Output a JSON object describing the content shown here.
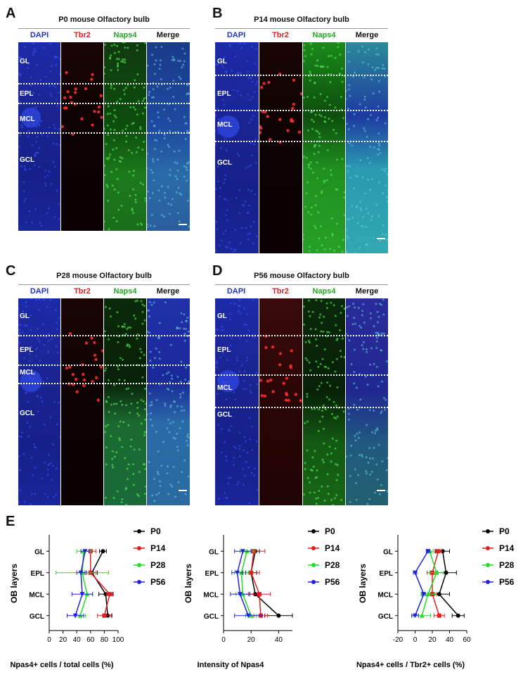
{
  "panels": [
    {
      "letter": "A",
      "title": "P0 mouse Olfactory bulb",
      "columns": [
        "DAPI",
        "Tbr2",
        "Naps4",
        "Merge"
      ],
      "layers": [
        "GL",
        "EPL",
        "MCL",
        "GCL"
      ]
    },
    {
      "letter": "B",
      "title": "P14 mouse Olfactory bulb",
      "columns": [
        "DAPI",
        "Tbr2",
        "Naps4",
        "Merge"
      ],
      "layers": [
        "GL",
        "EPL",
        "MCL",
        "GCL"
      ]
    },
    {
      "letter": "C",
      "title": "P28 mouse Olfactory bulb",
      "columns": [
        "DAPI",
        "Tbr2",
        "Naps4",
        "Merge"
      ],
      "layers": [
        "GL",
        "EPL",
        "MCL",
        "GCL"
      ]
    },
    {
      "letter": "D",
      "title": "P56 mouse Olfactory bulb",
      "columns": [
        "DAPI",
        "Tbr2",
        "Naps4",
        "Merge"
      ],
      "layers": [
        "GL",
        "EPL",
        "MCL",
        "GCL"
      ]
    }
  ],
  "panel_e_letter": "E",
  "colors": {
    "dapi": "#2233cc",
    "tbr2": "#dd2222",
    "naps4": "#22aa22",
    "P0": "#000000",
    "P14": "#e02020",
    "P28": "#22dd22",
    "P56": "#2222dd"
  },
  "chart_data": [
    {
      "type": "line",
      "orientation": "horizontal",
      "categories": [
        "GL",
        "EPL",
        "MCL",
        "GCL"
      ],
      "ylabel": "OB layers",
      "xlabel": "Npas4+ cells / total cells (%)",
      "xlim": [
        0,
        100
      ],
      "xticks": [
        0,
        20,
        40,
        60,
        80,
        100
      ],
      "series": [
        {
          "name": "P0",
          "values": [
            78,
            62,
            82,
            85
          ],
          "errors": [
            5,
            8,
            10,
            6
          ]
        },
        {
          "name": "P14",
          "values": [
            60,
            60,
            88,
            80
          ],
          "errors": [
            8,
            8,
            5,
            10
          ]
        },
        {
          "name": "P28",
          "values": [
            50,
            48,
            55,
            45
          ],
          "errors": [
            10,
            38,
            8,
            8
          ]
        },
        {
          "name": "P56",
          "values": [
            52,
            46,
            48,
            38
          ],
          "errors": [
            6,
            6,
            15,
            12
          ]
        }
      ]
    },
    {
      "type": "line",
      "orientation": "horizontal",
      "categories": [
        "GL",
        "EPL",
        "MCL",
        "GCL"
      ],
      "ylabel": "OB layers",
      "xlabel": "Intensity of Npas4",
      "xlim": [
        0,
        50
      ],
      "xticks": [
        0,
        20,
        40
      ],
      "series": [
        {
          "name": "P0",
          "values": [
            23,
            20,
            23,
            40
          ],
          "errors": [
            3,
            4,
            4,
            10
          ]
        },
        {
          "name": "P14",
          "values": [
            22,
            20,
            26,
            27
          ],
          "errors": [
            8,
            6,
            8,
            5
          ]
        },
        {
          "name": "P28",
          "values": [
            17,
            13,
            14,
            20
          ],
          "errors": [
            5,
            5,
            5,
            4
          ]
        },
        {
          "name": "P56",
          "values": [
            14,
            10,
            12,
            18
          ],
          "errors": [
            6,
            4,
            7,
            10
          ]
        }
      ]
    },
    {
      "type": "line",
      "orientation": "horizontal",
      "categories": [
        "GL",
        "EPL",
        "MCL",
        "GCL"
      ],
      "ylabel": "OB layers",
      "xlabel": "Npas4+ cells / Tbr2+ cells (%)",
      "xlim": [
        -20,
        60
      ],
      "xticks": [
        -20,
        0,
        20,
        40,
        60
      ],
      "series": [
        {
          "name": "P0",
          "values": [
            32,
            36,
            28,
            50
          ],
          "errors": [
            8,
            12,
            12,
            7
          ]
        },
        {
          "name": "P14",
          "values": [
            27,
            20,
            20,
            28
          ],
          "errors": [
            4,
            6,
            5,
            6
          ]
        },
        {
          "name": "P28",
          "values": [
            17,
            25,
            15,
            8
          ],
          "errors": [
            4,
            8,
            8,
            10
          ]
        },
        {
          "name": "P56",
          "values": [
            15,
            0,
            10,
            0
          ],
          "errors": [
            2,
            2,
            2,
            4
          ]
        }
      ]
    }
  ]
}
